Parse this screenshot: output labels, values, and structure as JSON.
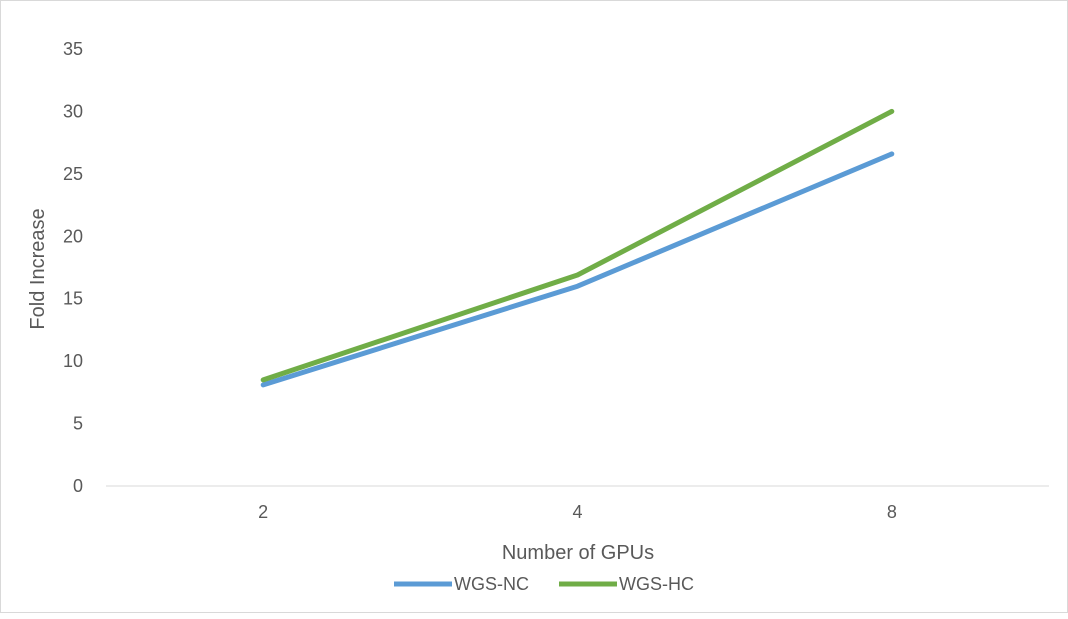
{
  "chart_data": {
    "type": "line",
    "title": "",
    "xlabel": "Number of GPUs",
    "ylabel": "Fold Increase",
    "categories": [
      "2",
      "4",
      "8"
    ],
    "ylim": [
      0,
      35
    ],
    "yticks": [
      0,
      5,
      10,
      15,
      20,
      25,
      30,
      35
    ],
    "grid": false,
    "legend_position": "bottom",
    "series": [
      {
        "name": "WGS-NC",
        "color": "#5b9bd5",
        "values": [
          8.1,
          16.0,
          26.6
        ]
      },
      {
        "name": "WGS-HC",
        "color": "#70ad47",
        "values": [
          8.5,
          16.9,
          30.0
        ]
      }
    ]
  }
}
